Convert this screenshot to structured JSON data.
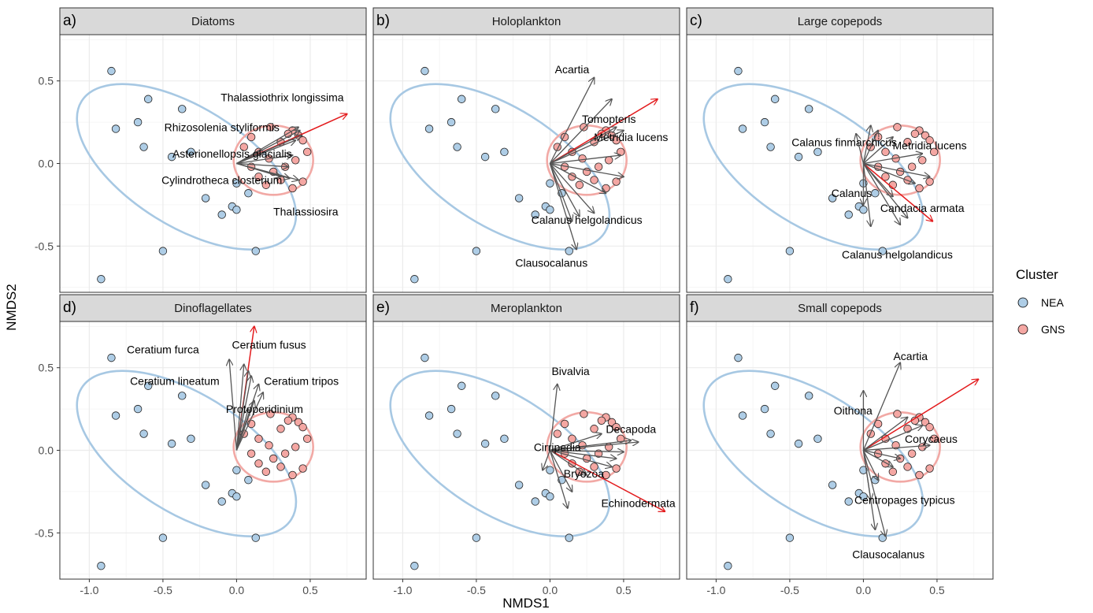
{
  "chart_data": {
    "type": "scatter",
    "xlabel": "NMDS1",
    "ylabel": "NMDS2",
    "xlim": [
      -1.2,
      0.88
    ],
    "ylim": [
      -0.78,
      0.78
    ],
    "x_ticks": [
      -1.0,
      -0.5,
      0.0,
      0.5
    ],
    "x_tick_labels": [
      "-1.0",
      "-0.5",
      "0.0",
      "0.5"
    ],
    "y_ticks": [
      0.5,
      0.0,
      -0.5
    ],
    "y_tick_labels": [
      "0.5",
      "0.0",
      "-0.5"
    ],
    "grid": true,
    "legend": {
      "title": "Cluster",
      "placement": "right",
      "entries": [
        {
          "name": "NEA",
          "color": "#aecde6"
        },
        {
          "name": "GNS",
          "color": "#f4a7a3"
        }
      ]
    },
    "colors": {
      "nea_fill": "#aecde6",
      "gns_fill": "#f4a7a3",
      "nea_ellipse": "#a7c8e3",
      "gns_ellipse": "#f2a9a5",
      "strip_bg": "#d9d9d9",
      "grid": "#ebebeb",
      "vector_gray": "#555555",
      "vector_red": "#e31a1c"
    },
    "sites": {
      "NEA": [
        {
          "x": -0.85,
          "y": 0.56
        },
        {
          "x": -0.82,
          "y": 0.21
        },
        {
          "x": -0.6,
          "y": 0.39
        },
        {
          "x": -0.37,
          "y": 0.33
        },
        {
          "x": -0.67,
          "y": 0.25
        },
        {
          "x": -0.63,
          "y": 0.1
        },
        {
          "x": -0.44,
          "y": 0.04
        },
        {
          "x": -0.31,
          "y": 0.07
        },
        {
          "x": -0.21,
          "y": -0.21
        },
        {
          "x": -0.1,
          "y": -0.31
        },
        {
          "x": -0.03,
          "y": -0.26
        },
        {
          "x": 0.0,
          "y": -0.28
        },
        {
          "x": 0.08,
          "y": -0.18
        },
        {
          "x": 0.0,
          "y": -0.12
        },
        {
          "x": -0.5,
          "y": -0.53
        },
        {
          "x": 0.13,
          "y": -0.53
        },
        {
          "x": -0.92,
          "y": -0.7
        }
      ],
      "GNS": [
        {
          "x": 0.05,
          "y": 0.1
        },
        {
          "x": 0.1,
          "y": 0.16
        },
        {
          "x": 0.15,
          "y": 0.07
        },
        {
          "x": 0.23,
          "y": 0.22
        },
        {
          "x": 0.3,
          "y": 0.13
        },
        {
          "x": 0.38,
          "y": 0.2
        },
        {
          "x": 0.42,
          "y": 0.17
        },
        {
          "x": 0.45,
          "y": 0.14
        },
        {
          "x": 0.48,
          "y": 0.07
        },
        {
          "x": 0.4,
          "y": 0.02
        },
        {
          "x": 0.33,
          "y": -0.02
        },
        {
          "x": 0.25,
          "y": -0.05
        },
        {
          "x": 0.2,
          "y": -0.13
        },
        {
          "x": 0.3,
          "y": -0.1
        },
        {
          "x": 0.38,
          "y": -0.15
        },
        {
          "x": 0.45,
          "y": -0.11
        },
        {
          "x": 0.15,
          "y": -0.08
        },
        {
          "x": 0.1,
          "y": -0.02
        },
        {
          "x": 0.22,
          "y": 0.03
        },
        {
          "x": 0.35,
          "y": 0.18
        }
      ]
    },
    "ellipses": {
      "NEA": {
        "cx": -0.34,
        "cy": -0.02,
        "rx": 0.84,
        "ry": 0.36,
        "angle_deg": -32
      },
      "GNS": {
        "cx": 0.25,
        "cy": 0.02,
        "rx": 0.27,
        "ry": 0.21,
        "angle_deg": 0
      }
    },
    "panels": [
      {
        "tag": "a)",
        "title": "Diatoms",
        "vectors": [
          {
            "x": 0.75,
            "y": 0.3,
            "red": true
          },
          {
            "x": 0.42,
            "y": 0.22
          },
          {
            "x": 0.43,
            "y": 0.2
          },
          {
            "x": 0.44,
            "y": 0.17
          },
          {
            "x": 0.4,
            "y": 0.14
          },
          {
            "x": 0.38,
            "y": 0.05
          },
          {
            "x": 0.35,
            "y": -0.02
          },
          {
            "x": 0.42,
            "y": -0.1
          },
          {
            "x": 0.36,
            "y": -0.09
          },
          {
            "x": 0.3,
            "y": -0.08
          }
        ],
        "labels": [
          {
            "text": "Thalassiothrix longissima",
            "x": 0.31,
            "y": 0.4
          },
          {
            "text": "Rhizosolenia styliformis",
            "x": -0.1,
            "y": 0.22
          },
          {
            "text": "Asterionellopsis glacialis",
            "x": -0.03,
            "y": 0.06
          },
          {
            "text": "Cylindrotheca closterium",
            "x": -0.1,
            "y": -0.1
          },
          {
            "text": "Thalassiosira",
            "x": 0.47,
            "y": -0.29
          }
        ]
      },
      {
        "tag": "b)",
        "title": "Holoplankton",
        "vectors": [
          {
            "x": 0.73,
            "y": 0.39,
            "red": true
          },
          {
            "x": 0.3,
            "y": 0.52
          },
          {
            "x": 0.42,
            "y": 0.39
          },
          {
            "x": 0.45,
            "y": 0.22
          },
          {
            "x": 0.5,
            "y": 0.2
          },
          {
            "x": 0.48,
            "y": 0.05
          },
          {
            "x": 0.5,
            "y": -0.08
          },
          {
            "x": 0.38,
            "y": -0.18
          },
          {
            "x": 0.3,
            "y": -0.3
          },
          {
            "x": 0.2,
            "y": -0.32
          },
          {
            "x": 0.15,
            "y": -0.35
          },
          {
            "x": 0.18,
            "y": -0.52
          }
        ],
        "labels": [
          {
            "text": "Acartia",
            "x": 0.15,
            "y": 0.57
          },
          {
            "text": "Tomopteris",
            "x": 0.4,
            "y": 0.27
          },
          {
            "text": "Metridia lucens",
            "x": 0.55,
            "y": 0.16
          },
          {
            "text": "Calanus helgolandicus",
            "x": 0.25,
            "y": -0.34
          },
          {
            "text": "Clausocalanus",
            "x": 0.01,
            "y": -0.6
          }
        ]
      },
      {
        "tag": "c)",
        "title": "Large copepods",
        "vectors": [
          {
            "x": 0.47,
            "y": -0.35,
            "red": true
          },
          {
            "x": -0.05,
            "y": 0.18
          },
          {
            "x": 0.05,
            "y": 0.23
          },
          {
            "x": 0.1,
            "y": 0.2
          },
          {
            "x": 0.2,
            "y": 0.16
          },
          {
            "x": 0.4,
            "y": 0.06
          },
          {
            "x": 0.45,
            "y": -0.08
          },
          {
            "x": 0.35,
            "y": -0.12
          },
          {
            "x": 0.2,
            "y": -0.2
          },
          {
            "x": 0.0,
            "y": -0.25
          },
          {
            "x": 0.05,
            "y": -0.38
          },
          {
            "x": 0.25,
            "y": -0.37
          },
          {
            "x": 0.3,
            "y": -0.33
          }
        ],
        "labels": [
          {
            "text": "Calanus finmarchicus",
            "x": -0.13,
            "y": 0.13
          },
          {
            "text": "Metridia lucens",
            "x": 0.45,
            "y": 0.11
          },
          {
            "text": "Calanus",
            "x": -0.08,
            "y": -0.18
          },
          {
            "text": "Candacia armata",
            "x": 0.4,
            "y": -0.27
          },
          {
            "text": "Calanus helgolandicus",
            "x": 0.23,
            "y": -0.55
          }
        ]
      },
      {
        "tag": "d)",
        "title": "Dinoflagellates",
        "vectors": [
          {
            "x": 0.12,
            "y": 0.75,
            "red": true
          },
          {
            "x": -0.05,
            "y": 0.55
          },
          {
            "x": 0.05,
            "y": 0.52
          },
          {
            "x": 0.08,
            "y": 0.48
          },
          {
            "x": 0.1,
            "y": 0.45
          },
          {
            "x": 0.15,
            "y": 0.4
          },
          {
            "x": 0.12,
            "y": 0.3
          },
          {
            "x": 0.08,
            "y": 0.25
          },
          {
            "x": 0.18,
            "y": 0.35
          }
        ],
        "labels": [
          {
            "text": "Ceratium furca",
            "x": -0.5,
            "y": 0.61
          },
          {
            "text": "Ceratium fusus",
            "x": 0.22,
            "y": 0.64
          },
          {
            "text": "Ceratium lineatum",
            "x": -0.42,
            "y": 0.42
          },
          {
            "text": "Ceratium tripos",
            "x": 0.44,
            "y": 0.42
          },
          {
            "text": "Protoperidinium",
            "x": 0.19,
            "y": 0.25
          }
        ]
      },
      {
        "tag": "e)",
        "title": "Meroplankton",
        "vectors": [
          {
            "x": 0.78,
            "y": -0.37,
            "red": true
          },
          {
            "x": 0.05,
            "y": 0.4
          },
          {
            "x": 0.35,
            "y": 0.1
          },
          {
            "x": 0.55,
            "y": 0.06
          },
          {
            "x": 0.6,
            "y": 0.05
          },
          {
            "x": 0.5,
            "y": -0.01
          },
          {
            "x": 0.45,
            "y": -0.05
          },
          {
            "x": 0.42,
            "y": -0.1
          },
          {
            "x": 0.25,
            "y": -0.15
          },
          {
            "x": 0.15,
            "y": -0.25
          },
          {
            "x": 0.12,
            "y": -0.35
          },
          {
            "x": -0.05,
            "y": -0.12
          }
        ],
        "labels": [
          {
            "text": "Bivalvia",
            "x": 0.14,
            "y": 0.48
          },
          {
            "text": "Decapoda",
            "x": 0.55,
            "y": 0.13
          },
          {
            "text": "Cirripedia",
            "x": 0.05,
            "y": 0.02
          },
          {
            "text": "Bryozoa",
            "x": 0.23,
            "y": -0.14
          },
          {
            "text": "Echinodermata",
            "x": 0.6,
            "y": -0.32
          }
        ]
      },
      {
        "tag": "f)",
        "title": "Small copepods",
        "vectors": [
          {
            "x": 0.78,
            "y": 0.43,
            "red": true
          },
          {
            "x": 0.25,
            "y": 0.53
          },
          {
            "x": 0.0,
            "y": 0.36
          },
          {
            "x": 0.3,
            "y": 0.2
          },
          {
            "x": 0.4,
            "y": 0.15
          },
          {
            "x": 0.45,
            "y": 0.03
          },
          {
            "x": 0.25,
            "y": -0.05
          },
          {
            "x": 0.2,
            "y": -0.1
          },
          {
            "x": 0.1,
            "y": -0.18
          },
          {
            "x": 0.05,
            "y": -0.3
          },
          {
            "x": 0.08,
            "y": -0.48
          },
          {
            "x": 0.15,
            "y": -0.52
          }
        ],
        "labels": [
          {
            "text": "Acartia",
            "x": 0.32,
            "y": 0.57
          },
          {
            "text": "Oithona",
            "x": -0.07,
            "y": 0.24
          },
          {
            "text": "Corycaeus",
            "x": 0.46,
            "y": 0.07
          },
          {
            "text": "Centropages typicus",
            "x": 0.28,
            "y": -0.3
          },
          {
            "text": "Clausocalanus",
            "x": 0.17,
            "y": -0.63
          }
        ]
      }
    ]
  }
}
